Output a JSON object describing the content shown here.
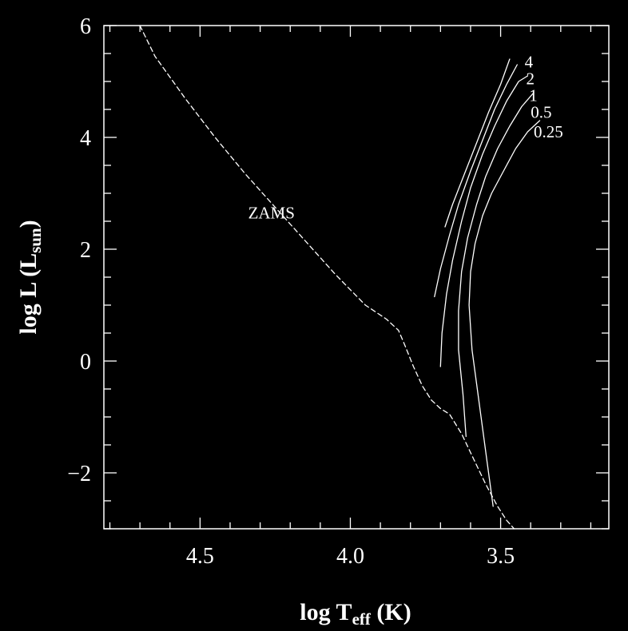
{
  "chart_data": {
    "type": "line",
    "title": "",
    "xlabel": {
      "main": "log T",
      "sub": "eff",
      "tail": " (K)"
    },
    "ylabel": {
      "main": "log L (L",
      "sub": "sun",
      "tail": ")"
    },
    "xlim": [
      4.82,
      3.14
    ],
    "ylim": [
      -3.0,
      6.0
    ],
    "x_ticks": [
      4.5,
      4.0,
      3.5
    ],
    "x_tick_labels": [
      "4.5",
      "4.0",
      "3.5"
    ],
    "y_ticks": [
      6,
      4,
      2,
      0,
      -2
    ],
    "y_tick_labels": [
      "6",
      "4",
      "2",
      "0",
      "−2"
    ],
    "annotations": [
      {
        "text": "ZAMS",
        "x": 4.34,
        "y": 2.65
      }
    ],
    "series": [
      {
        "name": "ZAMS",
        "style": "dashed",
        "x": [
          4.7,
          4.65,
          4.55,
          4.45,
          4.35,
          4.25,
          4.15,
          4.05,
          3.95,
          3.88,
          3.84,
          3.82,
          3.79,
          3.76,
          3.73,
          3.7,
          3.67,
          3.63,
          3.59,
          3.55,
          3.51,
          3.48,
          3.455
        ],
        "y": [
          6.0,
          5.45,
          4.7,
          4.0,
          3.35,
          2.75,
          2.15,
          1.55,
          1.0,
          0.75,
          0.55,
          0.3,
          -0.1,
          -0.45,
          -0.7,
          -0.85,
          -0.95,
          -1.3,
          -1.75,
          -2.2,
          -2.6,
          -2.85,
          -3.0
        ]
      },
      {
        "name": "4",
        "x": [
          3.685,
          3.66,
          3.62,
          3.58,
          3.54,
          3.5,
          3.47
        ],
        "y": [
          2.4,
          2.8,
          3.35,
          3.9,
          4.45,
          4.95,
          5.4
        ]
      },
      {
        "name": "2",
        "x": [
          3.72,
          3.7,
          3.67,
          3.64,
          3.6,
          3.56,
          3.52,
          3.48,
          3.445
        ],
        "y": [
          1.15,
          1.65,
          2.25,
          2.8,
          3.4,
          3.95,
          4.5,
          4.95,
          5.3
        ]
      },
      {
        "name": "1",
        "x": [
          3.7,
          3.695,
          3.68,
          3.66,
          3.63,
          3.6,
          3.56,
          3.52,
          3.48,
          3.44,
          3.41
        ],
        "y": [
          -0.1,
          0.5,
          1.2,
          1.8,
          2.5,
          3.1,
          3.7,
          4.2,
          4.65,
          5.0,
          5.1
        ]
      },
      {
        "name": "0.5",
        "x": [
          3.615,
          3.625,
          3.64,
          3.64,
          3.63,
          3.61,
          3.58,
          3.55,
          3.51,
          3.47,
          3.43,
          3.39
        ],
        "y": [
          -1.35,
          -0.6,
          0.2,
          0.9,
          1.6,
          2.2,
          2.8,
          3.3,
          3.8,
          4.2,
          4.55,
          4.8
        ]
      },
      {
        "name": "0.25",
        "x": [
          3.525,
          3.545,
          3.57,
          3.595,
          3.605,
          3.6,
          3.585,
          3.56,
          3.53,
          3.49,
          3.45,
          3.41,
          3.37
        ],
        "y": [
          -2.6,
          -1.8,
          -0.8,
          0.2,
          1.0,
          1.6,
          2.1,
          2.6,
          3.0,
          3.4,
          3.8,
          4.1,
          4.3
        ]
      }
    ],
    "series_labels": [
      {
        "text": "4",
        "x": 3.42,
        "y": 5.35
      },
      {
        "text": "2",
        "x": 3.415,
        "y": 5.05
      },
      {
        "text": "1",
        "x": 3.405,
        "y": 4.75
      },
      {
        "text": "0.5",
        "x": 3.4,
        "y": 4.45
      },
      {
        "text": "0.25",
        "x": 3.39,
        "y": 4.1
      }
    ],
    "grid": false,
    "legend": "none"
  },
  "colors": {
    "background": "#000000",
    "foreground": "#ffffff"
  }
}
